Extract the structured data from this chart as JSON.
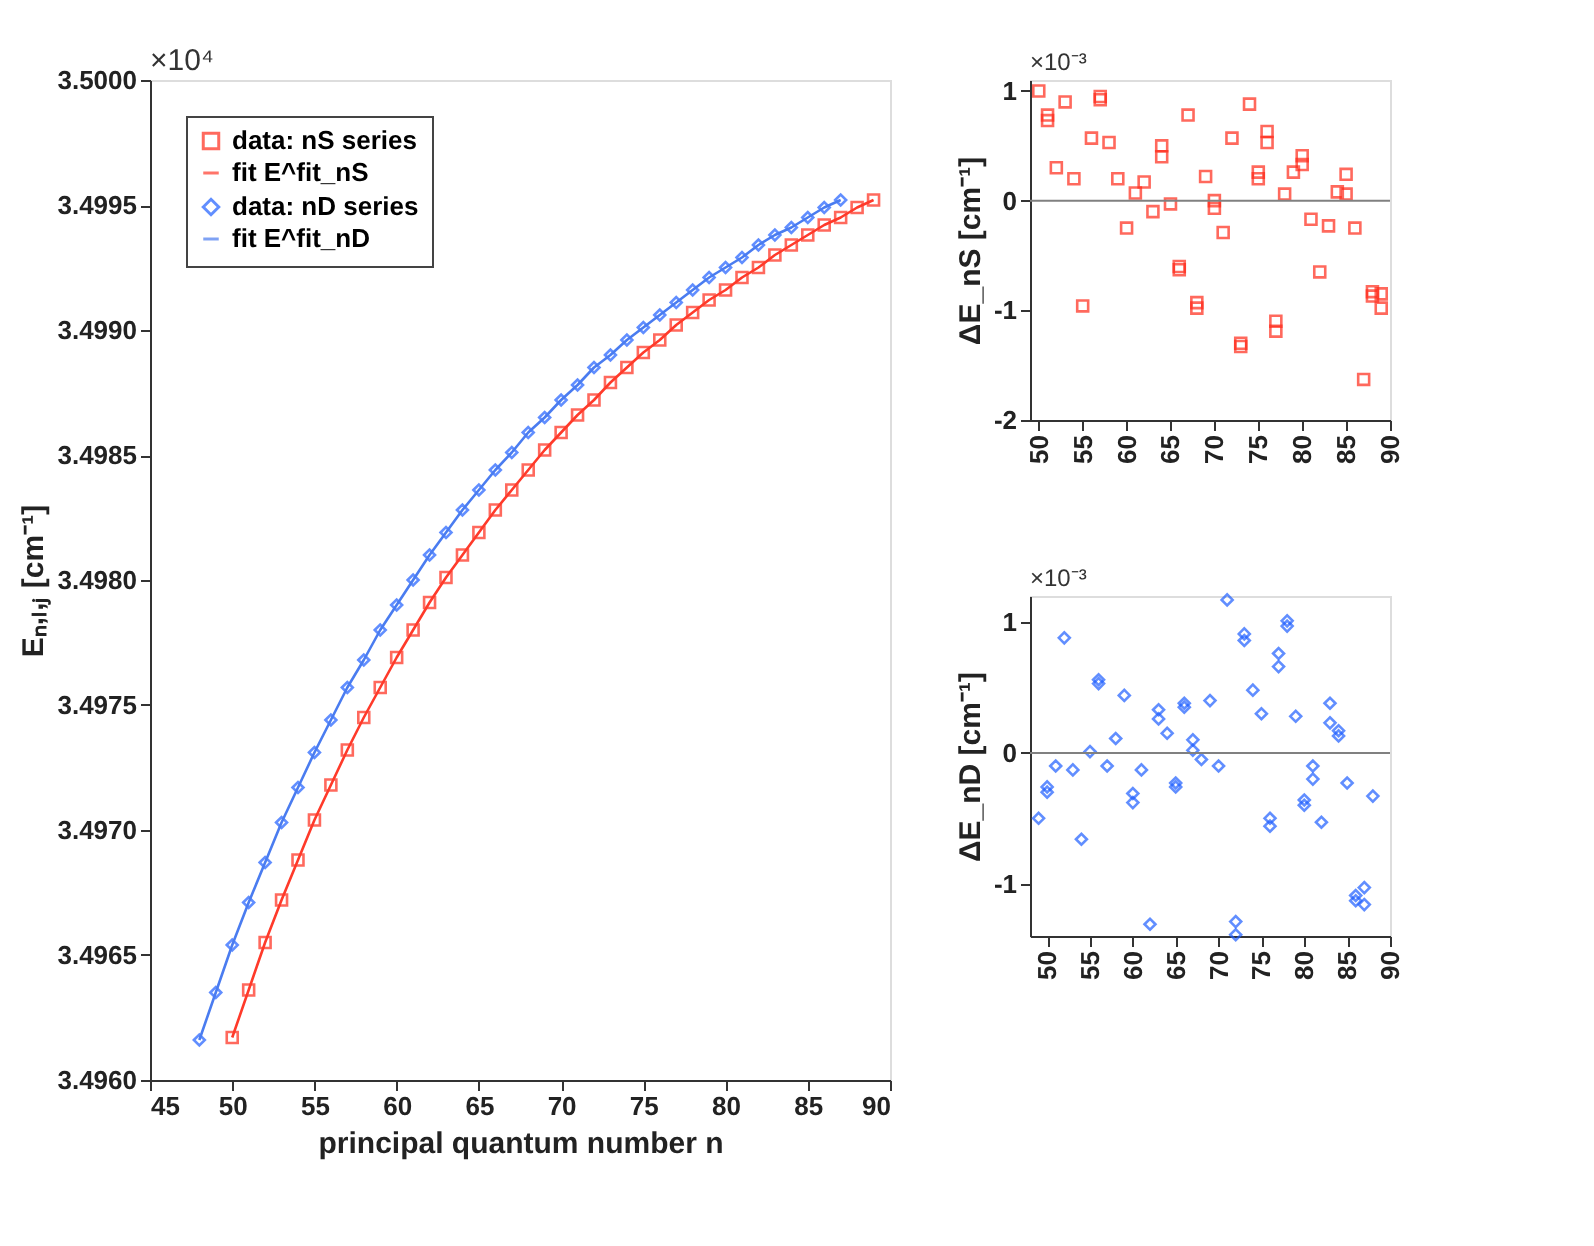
{
  "chart_data": [
    {
      "type": "line",
      "xlabel": "principal quantum number n",
      "ylabel": "Eₙ,ₗ,ⱼ [cm⁻¹]",
      "annotations": [
        "×10⁴"
      ],
      "legend": "top left",
      "xlim": [
        45,
        90
      ],
      "xticks": [
        45,
        50,
        55,
        60,
        65,
        70,
        75,
        80,
        85,
        90
      ],
      "ylim": [
        3.496,
        3.5
      ],
      "yticks": [
        {
          "value": 3.496,
          "label": "3.4960"
        },
        {
          "value": 3.4965,
          "label": "3.4965"
        },
        {
          "value": 3.497,
          "label": "3.4970"
        },
        {
          "value": 3.4975,
          "label": "3.4975"
        },
        {
          "value": 3.498,
          "label": "3.4980"
        },
        {
          "value": 3.4985,
          "label": "3.4985"
        },
        {
          "value": 3.499,
          "label": "3.4990"
        },
        {
          "value": 3.4995,
          "label": "3.4995"
        },
        {
          "value": 3.5,
          "label": "3.5000"
        }
      ],
      "series": [
        {
          "name": "data: nS series",
          "type": "scatter",
          "marker": "square",
          "color": "#ff2a1a",
          "x": [
            50,
            51,
            52,
            53,
            54,
            55,
            56,
            57,
            58,
            59,
            60,
            61,
            62,
            63,
            64,
            65,
            66,
            67,
            68,
            69,
            70,
            71,
            72,
            73,
            74,
            75,
            76,
            77,
            78,
            79,
            80,
            81,
            82,
            83,
            84,
            85,
            86,
            87,
            88,
            89
          ],
          "values": [
            3.49617,
            3.49636,
            3.49655,
            3.49672,
            3.49688,
            3.49704,
            3.49718,
            3.49732,
            3.49745,
            3.49757,
            3.49769,
            3.4978,
            3.49791,
            3.49801,
            3.4981,
            3.49819,
            3.49828,
            3.49836,
            3.49844,
            3.49852,
            3.49859,
            3.49866,
            3.49872,
            3.49879,
            3.49885,
            3.49891,
            3.49896,
            3.49902,
            3.49907,
            3.49912,
            3.49916,
            3.49921,
            3.49925,
            3.4993,
            3.49934,
            3.49938,
            3.49942,
            3.49945,
            3.49949,
            3.49952
          ]
        },
        {
          "name": "fit E^fit_nS",
          "type": "line",
          "marker": "none",
          "color": "#ff3a2a",
          "x": [
            50,
            51,
            52,
            53,
            54,
            55,
            56,
            57,
            58,
            59,
            60,
            61,
            62,
            63,
            64,
            65,
            66,
            67,
            68,
            69,
            70,
            71,
            72,
            73,
            74,
            75,
            76,
            77,
            78,
            79,
            80,
            81,
            82,
            83,
            84,
            85,
            86,
            87,
            88,
            89
          ],
          "values": [
            3.49617,
            3.49636,
            3.49655,
            3.49672,
            3.49688,
            3.49704,
            3.49718,
            3.49732,
            3.49745,
            3.49757,
            3.49769,
            3.4978,
            3.49791,
            3.49801,
            3.4981,
            3.49819,
            3.49828,
            3.49836,
            3.49844,
            3.49852,
            3.49859,
            3.49866,
            3.49872,
            3.49879,
            3.49885,
            3.49891,
            3.49896,
            3.49902,
            3.49907,
            3.49912,
            3.49916,
            3.49921,
            3.49925,
            3.4993,
            3.49934,
            3.49938,
            3.49942,
            3.49945,
            3.49949,
            3.49952
          ]
        },
        {
          "name": "data: nD series",
          "type": "scatter",
          "marker": "diamond",
          "color": "#1f5fff",
          "x": [
            48,
            49,
            50,
            51,
            52,
            53,
            54,
            55,
            56,
            57,
            58,
            59,
            60,
            61,
            62,
            63,
            64,
            65,
            66,
            67,
            68,
            69,
            70,
            71,
            72,
            73,
            74,
            75,
            76,
            77,
            78,
            79,
            80,
            81,
            82,
            83,
            84,
            85,
            86,
            87
          ],
          "values": [
            3.49616,
            3.49635,
            3.49654,
            3.49671,
            3.49687,
            3.49703,
            3.49717,
            3.49731,
            3.49744,
            3.49757,
            3.49768,
            3.4978,
            3.4979,
            3.498,
            3.4981,
            3.49819,
            3.49828,
            3.49836,
            3.49844,
            3.49851,
            3.49859,
            3.49865,
            3.49872,
            3.49878,
            3.49885,
            3.4989,
            3.49896,
            3.49901,
            3.49906,
            3.49911,
            3.49916,
            3.49921,
            3.49925,
            3.49929,
            3.49934,
            3.49938,
            3.49941,
            3.49945,
            3.49949,
            3.49952
          ]
        },
        {
          "name": "fit E^fit_nD",
          "type": "line",
          "marker": "none",
          "color": "#4a7cf0",
          "x": [
            48,
            49,
            50,
            51,
            52,
            53,
            54,
            55,
            56,
            57,
            58,
            59,
            60,
            61,
            62,
            63,
            64,
            65,
            66,
            67,
            68,
            69,
            70,
            71,
            72,
            73,
            74,
            75,
            76,
            77,
            78,
            79,
            80,
            81,
            82,
            83,
            84,
            85,
            86,
            87
          ],
          "values": [
            3.49616,
            3.49635,
            3.49654,
            3.49671,
            3.49687,
            3.49703,
            3.49717,
            3.49731,
            3.49744,
            3.49757,
            3.49768,
            3.4978,
            3.4979,
            3.498,
            3.4981,
            3.49819,
            3.49828,
            3.49836,
            3.49844,
            3.49851,
            3.49859,
            3.49865,
            3.49872,
            3.49878,
            3.49885,
            3.4989,
            3.49896,
            3.49901,
            3.49906,
            3.49911,
            3.49916,
            3.49921,
            3.49925,
            3.49929,
            3.49934,
            3.49938,
            3.49941,
            3.49945,
            3.49949,
            3.49952
          ]
        }
      ]
    },
    {
      "type": "scatter",
      "ylabel": "ΔE_nS [cm⁻¹]",
      "annotations": [
        "×10⁻³"
      ],
      "xlim": [
        49,
        90
      ],
      "xticks": [
        50,
        55,
        60,
        65,
        70,
        75,
        80,
        85,
        90
      ],
      "ylim": [
        -2,
        1.1
      ],
      "yticks": [
        -2,
        -1,
        0,
        1
      ],
      "ref_lines": [
        {
          "axis": "y",
          "value": 0,
          "color": "#808080"
        }
      ],
      "series": [
        {
          "marker": "square",
          "color": "#ff2a1a",
          "x": [
            50,
            51,
            51,
            52,
            53,
            54,
            55,
            56,
            57,
            57,
            58,
            59,
            60,
            61,
            62,
            63,
            64,
            64,
            65,
            66,
            66,
            67,
            68,
            68,
            69,
            70,
            70,
            71,
            72,
            73,
            73,
            74,
            75,
            75,
            76,
            76,
            77,
            77,
            78,
            79,
            80,
            80,
            81,
            82,
            83,
            84,
            85,
            85,
            86,
            87,
            88,
            88,
            89,
            89
          ],
          "values": [
            1.0,
            0.78,
            0.73,
            0.3,
            0.9,
            0.2,
            -0.96,
            0.57,
            0.95,
            0.92,
            0.53,
            0.2,
            -0.25,
            0.07,
            0.17,
            -0.1,
            0.5,
            0.4,
            -0.03,
            -0.6,
            -0.63,
            0.78,
            -0.93,
            -0.98,
            0.22,
            0.0,
            -0.07,
            -0.29,
            0.57,
            -1.3,
            -1.33,
            0.88,
            0.26,
            0.2,
            0.63,
            0.53,
            -1.1,
            -1.19,
            0.06,
            0.26,
            0.41,
            0.33,
            -0.17,
            -0.65,
            -0.23,
            0.08,
            0.24,
            0.06,
            -0.25,
            -1.63,
            -0.83,
            -0.87,
            -0.85,
            -0.98
          ]
        }
      ]
    },
    {
      "type": "scatter",
      "ylabel": "ΔE_nD [cm⁻¹]",
      "annotations": [
        "×10⁻³"
      ],
      "xlim": [
        48,
        90
      ],
      "xticks": [
        50,
        55,
        60,
        65,
        70,
        75,
        80,
        85,
        90
      ],
      "ylim": [
        -1.4,
        1.2
      ],
      "yticks": [
        -1,
        0,
        1
      ],
      "ref_lines": [
        {
          "axis": "y",
          "value": 0,
          "color": "#808080"
        }
      ],
      "series": [
        {
          "marker": "diamond",
          "color": "#1f5fff",
          "x": [
            49,
            50,
            50,
            51,
            52,
            53,
            54,
            55,
            56,
            56,
            57,
            58,
            59,
            60,
            60,
            61,
            62,
            63,
            63,
            64,
            65,
            65,
            66,
            66,
            67,
            67,
            68,
            69,
            70,
            71,
            72,
            72,
            73,
            73,
            74,
            75,
            76,
            76,
            77,
            77,
            78,
            78,
            79,
            80,
            80,
            81,
            81,
            82,
            83,
            83,
            84,
            84,
            85,
            86,
            86,
            87,
            87,
            88
          ],
          "values": [
            -0.5,
            -0.26,
            -0.3,
            -0.1,
            0.88,
            -0.13,
            -0.66,
            0.01,
            0.56,
            0.53,
            -0.1,
            0.11,
            0.44,
            -0.31,
            -0.38,
            -0.13,
            -1.31,
            0.33,
            0.26,
            0.15,
            -0.23,
            -0.26,
            0.38,
            0.35,
            0.1,
            0.02,
            -0.05,
            0.4,
            -0.1,
            1.17,
            -1.29,
            -1.39,
            0.91,
            0.86,
            0.48,
            0.3,
            -0.5,
            -0.56,
            0.76,
            0.66,
            1.01,
            0.97,
            0.28,
            -0.36,
            -0.4,
            -0.1,
            -0.2,
            -0.53,
            0.38,
            0.23,
            0.17,
            0.13,
            -0.23,
            -1.09,
            -1.13,
            -1.03,
            -1.16,
            -0.33
          ]
        }
      ]
    }
  ]
}
